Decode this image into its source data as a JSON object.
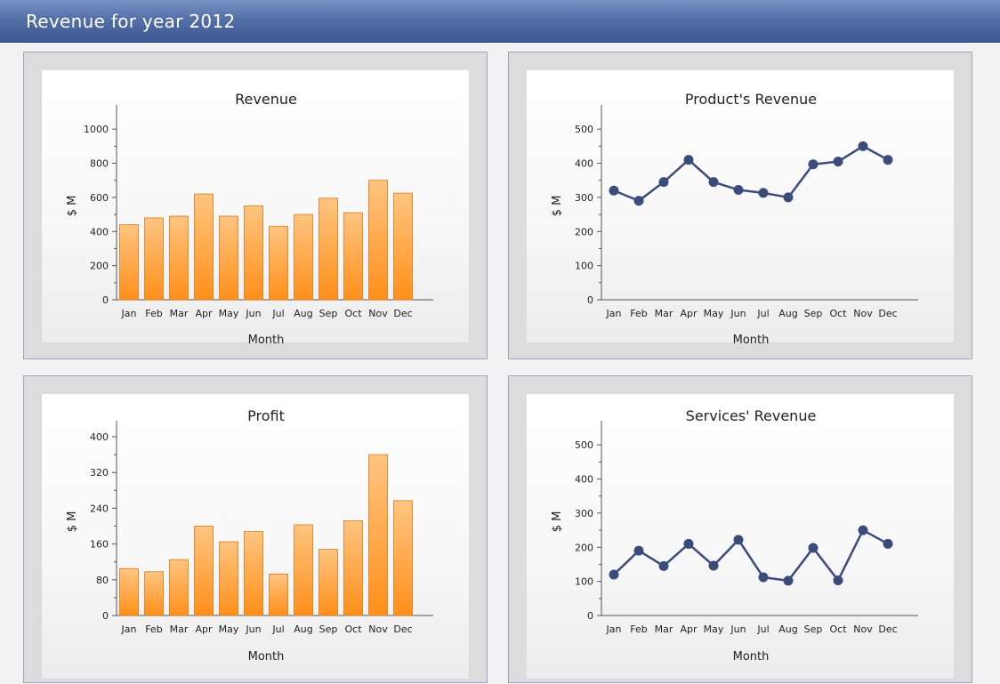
{
  "header": {
    "title": "Revenue for year 2012"
  },
  "colors": {
    "bar_top": "#ffc581",
    "bar_bottom": "#ff8f1a",
    "bar_stroke": "#d9791a",
    "line": "#3b4c7c",
    "axis": "#555555"
  },
  "chart_data": [
    {
      "id": "revenue",
      "type": "bar",
      "title": "Revenue",
      "xlabel": "Month",
      "ylabel": "$ M",
      "ylim": [
        0,
        1100
      ],
      "yticks": [
        0,
        200,
        400,
        600,
        800,
        1000
      ],
      "categories": [
        "Jan",
        "Feb",
        "Mar",
        "Apr",
        "May",
        "Jun",
        "Jul",
        "Aug",
        "Sep",
        "Oct",
        "Nov",
        "Dec"
      ],
      "values": [
        440,
        480,
        490,
        620,
        490,
        550,
        430,
        500,
        595,
        510,
        700,
        625
      ]
    },
    {
      "id": "product",
      "type": "line",
      "title": "Product's Revenue",
      "xlabel": "Month",
      "ylabel": "$ M",
      "ylim": [
        0,
        550
      ],
      "yticks": [
        0,
        100,
        200,
        300,
        400,
        500
      ],
      "categories": [
        "Jan",
        "Feb",
        "Mar",
        "Apr",
        "May",
        "Jun",
        "Jul",
        "Aug",
        "Sep",
        "Oct",
        "Nov",
        "Dec"
      ],
      "values": [
        320,
        290,
        345,
        410,
        345,
        322,
        313,
        300,
        397,
        405,
        450,
        410
      ]
    },
    {
      "id": "profit",
      "type": "bar",
      "title": "Profit",
      "xlabel": "Month",
      "ylabel": "$ M",
      "ylim": [
        0,
        420
      ],
      "yticks": [
        0,
        80,
        160,
        240,
        320,
        400
      ],
      "categories": [
        "Jan",
        "Feb",
        "Mar",
        "Apr",
        "May",
        "Jun",
        "Jul",
        "Aug",
        "Sep",
        "Oct",
        "Nov",
        "Dec"
      ],
      "values": [
        105,
        98,
        125,
        200,
        165,
        188,
        93,
        203,
        148,
        212,
        360,
        257
      ]
    },
    {
      "id": "services",
      "type": "line",
      "title": "Services' Revenue",
      "xlabel": "Month",
      "ylabel": "$ M",
      "ylim": [
        0,
        550
      ],
      "yticks": [
        0,
        100,
        200,
        300,
        400,
        500
      ],
      "categories": [
        "Jan",
        "Feb",
        "Mar",
        "Apr",
        "May",
        "Jun",
        "Jul",
        "Aug",
        "Sep",
        "Oct",
        "Nov",
        "Dec"
      ],
      "values": [
        120,
        190,
        145,
        210,
        146,
        222,
        112,
        102,
        198,
        103,
        250,
        210
      ]
    }
  ]
}
